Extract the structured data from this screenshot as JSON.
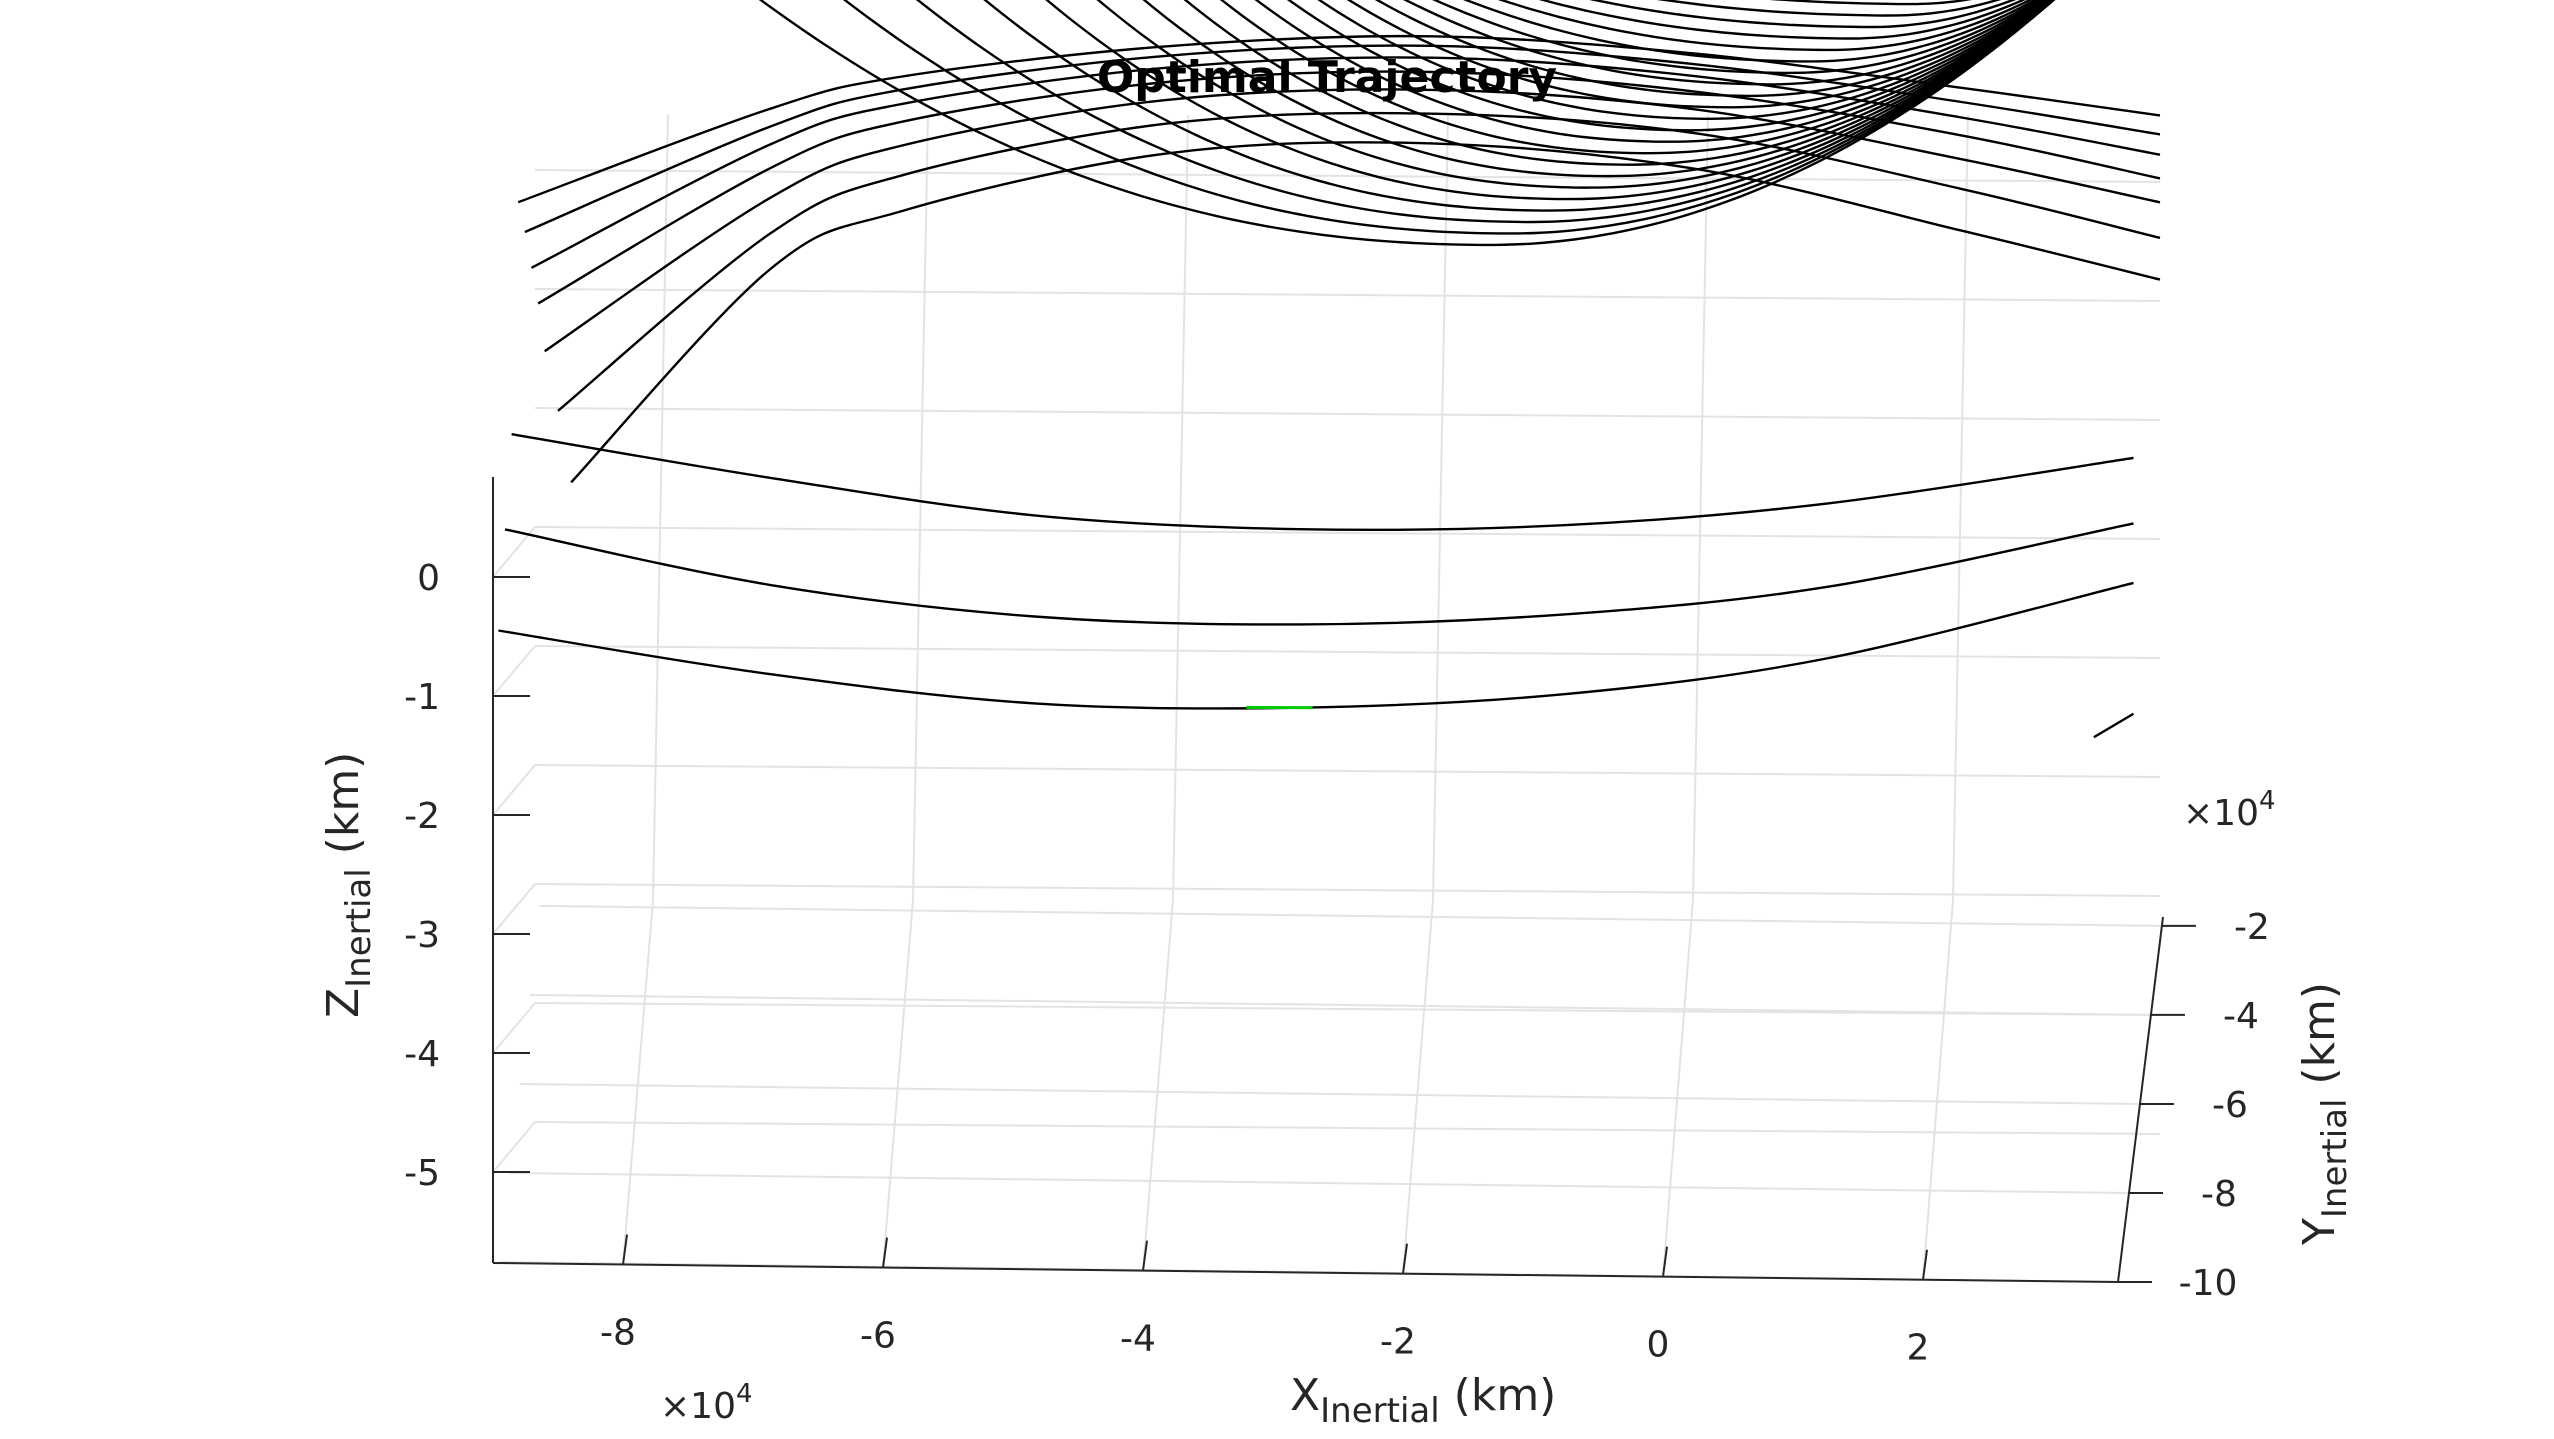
{
  "chart_data": {
    "type": "line",
    "title": "Optimal Trajectory",
    "xlabel": "X",
    "xlabel_sub": "Inertial",
    "xlabel_unit": " (km)",
    "ylabel": "Y",
    "ylabel_sub": "Inertial",
    "ylabel_unit": " (km)",
    "zlabel": "Z",
    "zlabel_sub": "Inertial",
    "zlabel_unit": " (km)",
    "x_exponent": "10",
    "x_exponent_power": "4",
    "y_exponent": "10",
    "y_exponent_power": "4",
    "x_ticks": [
      "-8",
      "-6",
      "-4",
      "-2",
      "0",
      "2"
    ],
    "y_ticks": [
      "-2",
      "-4",
      "-6",
      "-8",
      "-10"
    ],
    "z_ticks": [
      "0",
      "-1",
      "-2",
      "-3",
      "-4",
      "-5"
    ],
    "x_tick_values": [
      -8,
      -6,
      -4,
      -2,
      0,
      2
    ],
    "y_tick_values": [
      -2,
      -4,
      -6,
      -8,
      -10
    ],
    "z_tick_values": [
      0,
      -1,
      -2,
      -3,
      -4,
      -5
    ],
    "xlim": [
      -9,
      3.5
    ],
    "grid": true,
    "series_color": "#000000",
    "highlight_color": "#00cc00",
    "series": [
      {
        "values": [
          [
            -8.5,
            0.8
          ],
          [
            -7,
            2.6
          ],
          [
            -6,
            3.1
          ],
          [
            -4,
            3.6
          ],
          [
            -2,
            3.7
          ],
          [
            0,
            3.5
          ],
          [
            2,
            3.0
          ],
          [
            3.5,
            2.6
          ]
        ]
      },
      {
        "values": [
          [
            -8.6,
            1.4
          ],
          [
            -7,
            2.9
          ],
          [
            -6,
            3.4
          ],
          [
            -4,
            3.85
          ],
          [
            -2,
            3.95
          ],
          [
            0,
            3.8
          ],
          [
            2,
            3.35
          ],
          [
            3.5,
            2.95
          ]
        ]
      },
      {
        "values": [
          [
            -8.7,
            1.9
          ],
          [
            -7,
            3.2
          ],
          [
            -6,
            3.65
          ],
          [
            -4,
            4.05
          ],
          [
            -2,
            4.15
          ],
          [
            0,
            4.0
          ],
          [
            2,
            3.6
          ],
          [
            3.5,
            3.25
          ]
        ]
      },
      {
        "values": [
          [
            -8.75,
            2.3
          ],
          [
            -7,
            3.45
          ],
          [
            -6,
            3.85
          ],
          [
            -4,
            4.2
          ],
          [
            -2,
            4.3
          ],
          [
            0,
            4.15
          ],
          [
            2,
            3.8
          ],
          [
            3.5,
            3.45
          ]
        ]
      },
      {
        "values": [
          [
            -8.8,
            2.6
          ],
          [
            -7,
            3.65
          ],
          [
            -6,
            4.0
          ],
          [
            -4,
            4.32
          ],
          [
            -2,
            4.42
          ],
          [
            0,
            4.28
          ],
          [
            2,
            3.95
          ],
          [
            3.5,
            3.65
          ]
        ]
      },
      {
        "values": [
          [
            -8.85,
            2.9
          ],
          [
            -7,
            3.8
          ],
          [
            -6,
            4.12
          ],
          [
            -4,
            4.42
          ],
          [
            -2,
            4.52
          ],
          [
            0,
            4.38
          ],
          [
            2,
            4.08
          ],
          [
            3.5,
            3.82
          ]
        ]
      },
      {
        "values": [
          [
            -8.9,
            3.15
          ],
          [
            -7,
            3.95
          ],
          [
            -6,
            4.23
          ],
          [
            -4,
            4.5
          ],
          [
            -2,
            4.6
          ],
          [
            0,
            4.47
          ],
          [
            2,
            4.2
          ],
          [
            3.5,
            3.98
          ]
        ]
      }
    ],
    "arcs_top_count": 22,
    "arc_top_starts": [
      -8.3,
      -7.6,
      -7.0,
      -6.45,
      -5.95,
      -5.55,
      -5.2,
      -4.9,
      -4.65,
      -4.42,
      -4.22,
      -4.05,
      -3.9,
      -3.78,
      -3.68,
      -3.6,
      -3.54,
      -3.49,
      -3.45,
      -3.42,
      -3.4,
      -3.38
    ],
    "lower_curves": [
      {
        "values": [
          [
            -8.95,
            1.2
          ],
          [
            -7,
            0.85
          ],
          [
            -5,
            0.55
          ],
          [
            -3,
            0.45
          ],
          [
            -1,
            0.5
          ],
          [
            1,
            0.7
          ],
          [
            3.3,
            1.1
          ]
        ]
      },
      {
        "values": [
          [
            -9.0,
            0.4
          ],
          [
            -7,
            -0.05
          ],
          [
            -5,
            -0.3
          ],
          [
            -3,
            -0.35
          ],
          [
            -1,
            -0.25
          ],
          [
            1,
            0.0
          ],
          [
            3.3,
            0.55
          ]
        ]
      },
      {
        "values": [
          [
            -9.05,
            -0.45
          ],
          [
            -7,
            -0.8
          ],
          [
            -5,
            -1.03
          ],
          [
            -3,
            -1.05
          ],
          [
            -1,
            -0.92
          ],
          [
            1,
            -0.6
          ],
          [
            3.3,
            0.05
          ]
        ]
      }
    ],
    "short_segment": [
      [
        3.0,
        -1.25
      ],
      [
        3.3,
        -1.05
      ]
    ],
    "highlight_segment": [
      [
        -3.4,
        -1.05
      ],
      [
        -2.9,
        -1.05
      ]
    ]
  }
}
